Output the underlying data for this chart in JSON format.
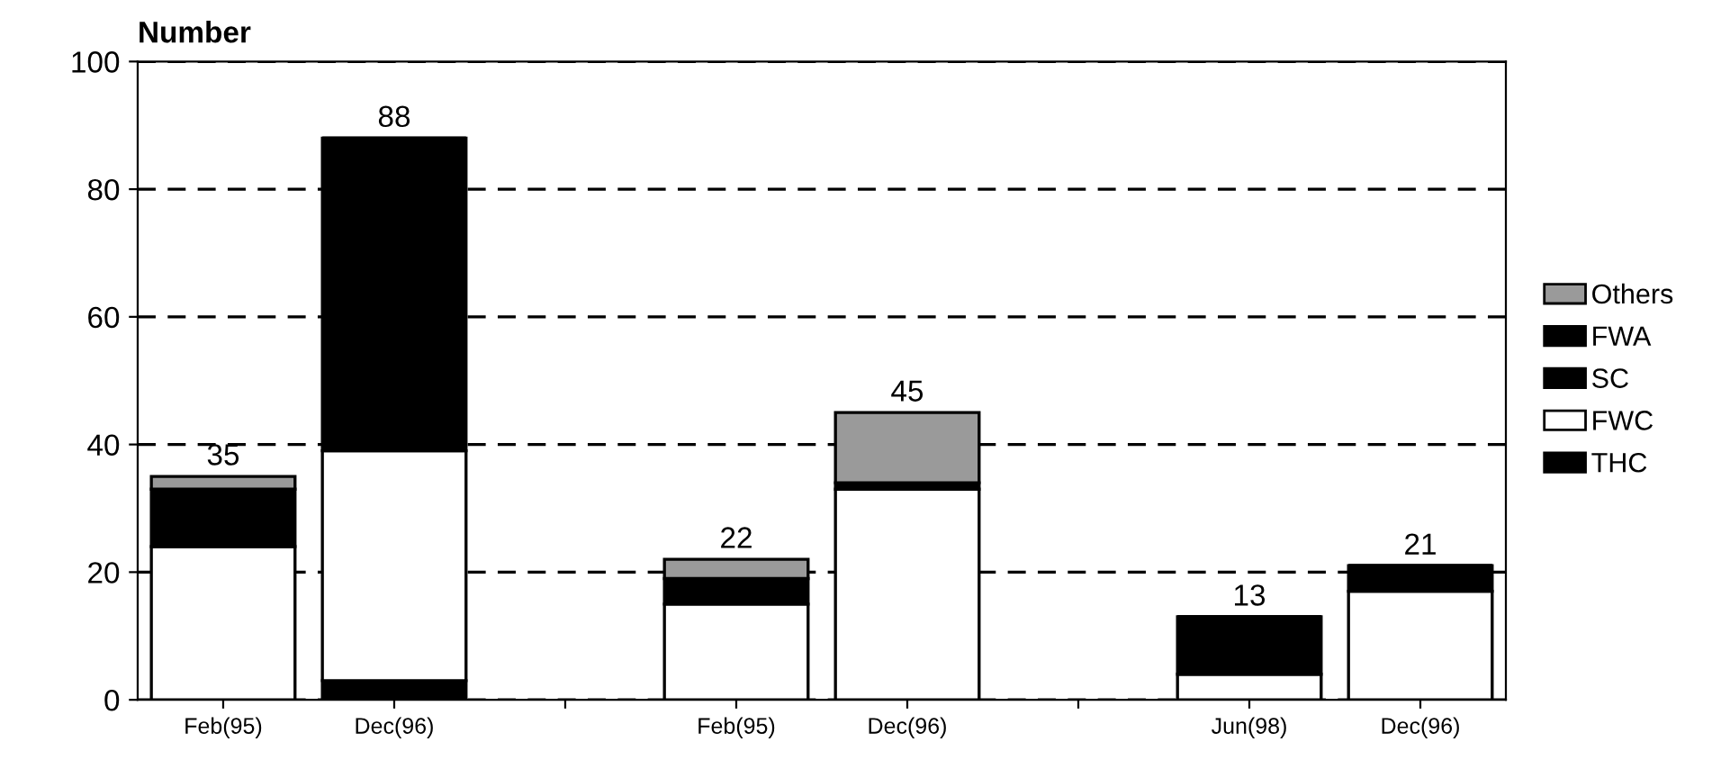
{
  "chart_data": {
    "type": "bar",
    "stacked": true,
    "ylabel": "Number",
    "categories": [
      "Feb(95)",
      "Dec(96)",
      null,
      "Feb(95)",
      "Dec(96)",
      null,
      "Jun(98)",
      "Dec(96)"
    ],
    "series": [
      {
        "name": "THC",
        "color": "#000000",
        "values": [
          0,
          3,
          null,
          0,
          0,
          null,
          0,
          0
        ]
      },
      {
        "name": "FWC",
        "color": "#ffffff",
        "values": [
          24,
          36,
          null,
          15,
          33,
          null,
          4,
          17
        ]
      },
      {
        "name": "SC",
        "color": "#000000",
        "values": [
          9,
          49,
          null,
          4,
          1,
          null,
          9,
          4
        ]
      },
      {
        "name": "FWA",
        "color": "#000000",
        "values": [
          0,
          0,
          null,
          0,
          0,
          null,
          0,
          0
        ]
      },
      {
        "name": "Others",
        "color": "#9a9a9a",
        "values": [
          2,
          0,
          null,
          3,
          11,
          null,
          0,
          0
        ]
      }
    ],
    "totals": [
      "35",
      "88",
      null,
      "22",
      "45",
      null,
      "13",
      "21"
    ],
    "ylim": [
      0,
      100
    ],
    "yticks": [
      0,
      20,
      40,
      60,
      80,
      100
    ],
    "grid": "y",
    "legend": "right"
  }
}
